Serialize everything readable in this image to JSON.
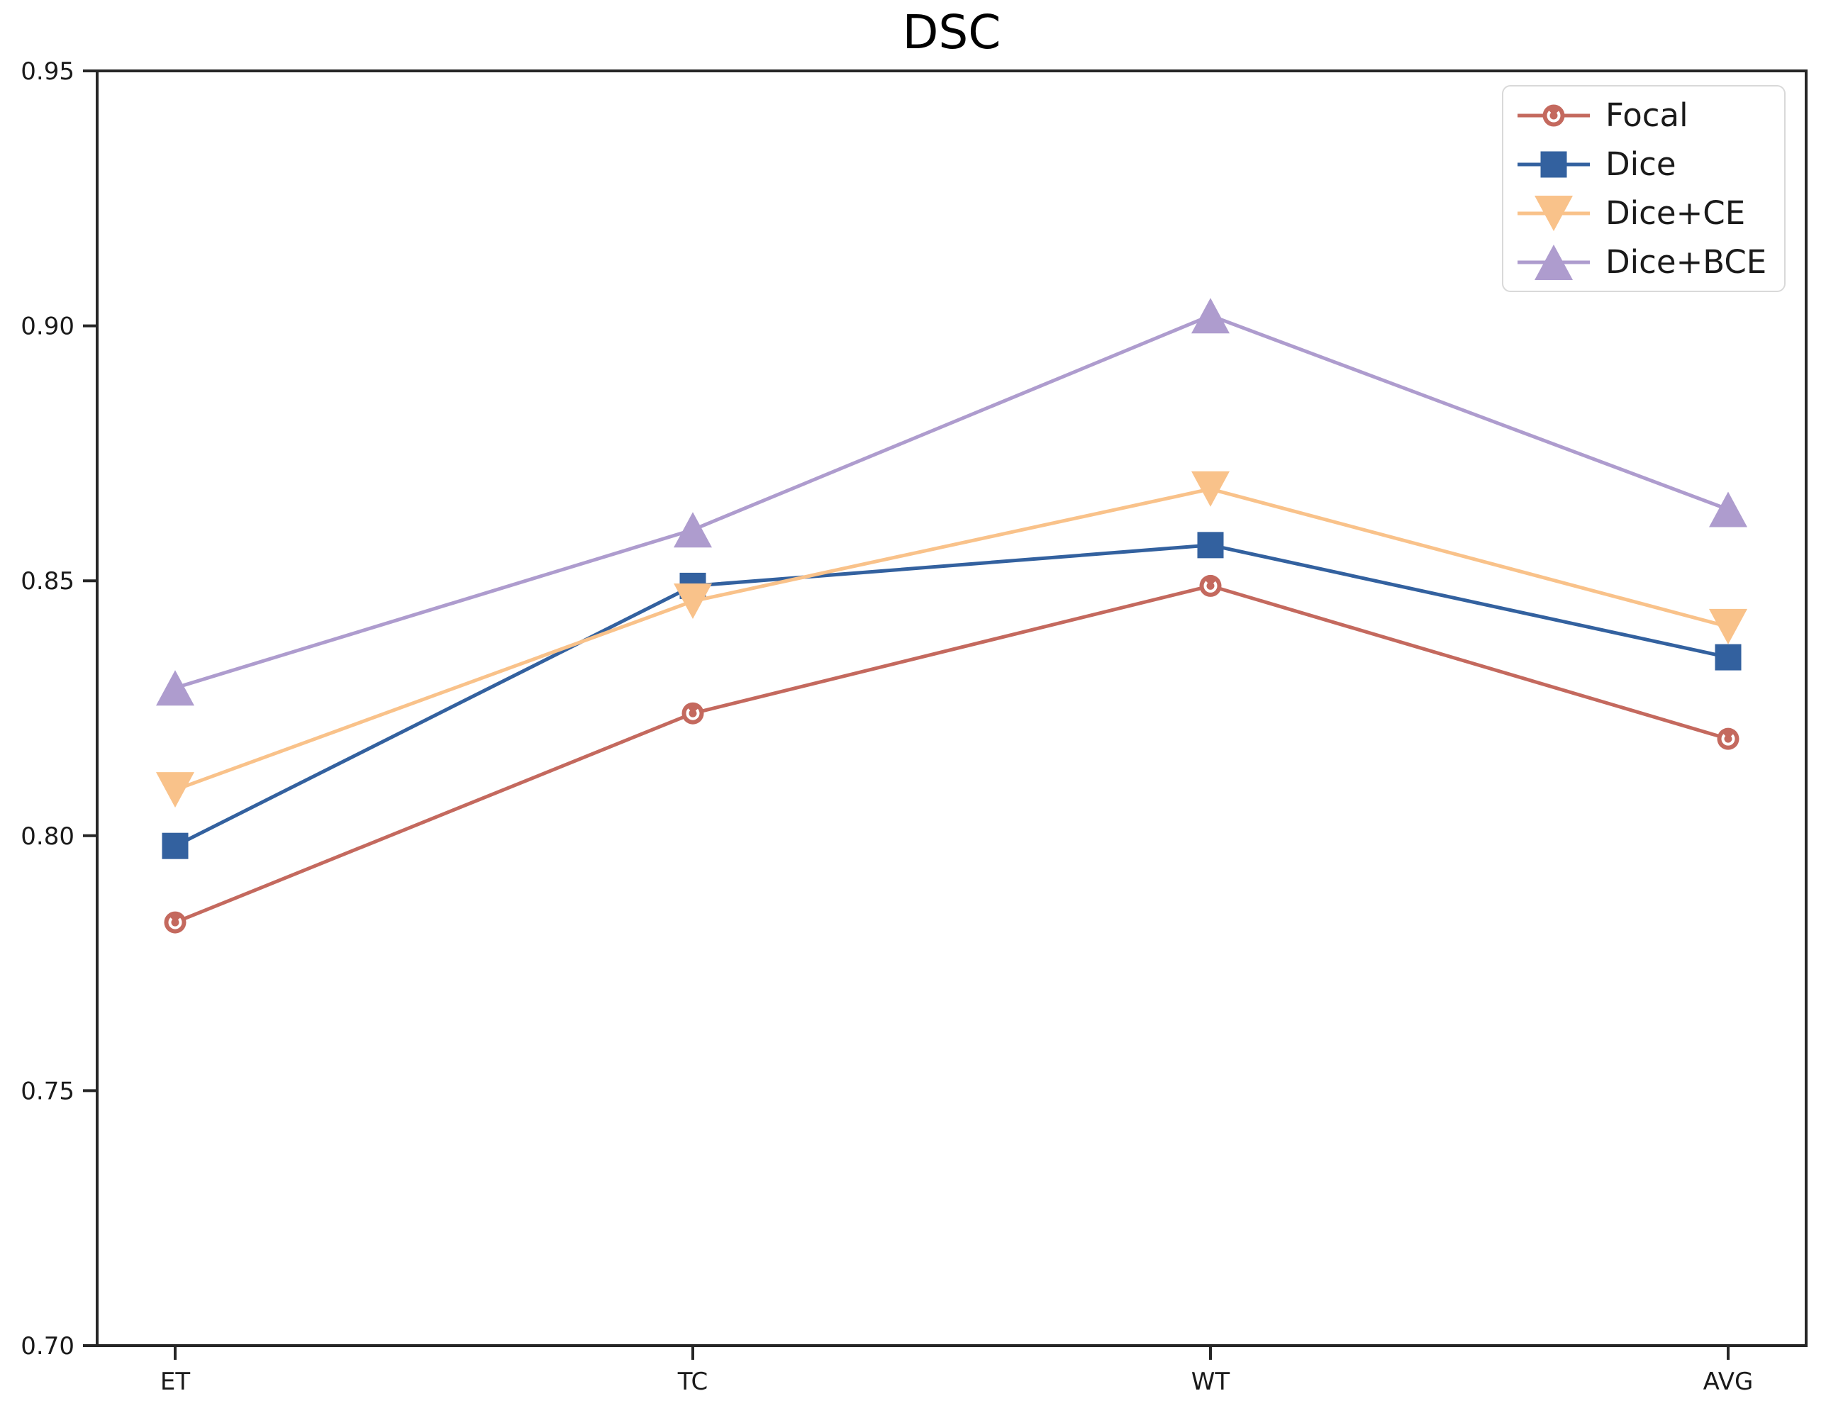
{
  "chart_data": {
    "type": "line",
    "title": "DSC",
    "categories": [
      "ET",
      "TC",
      "WT",
      "AVG"
    ],
    "xlabel": "",
    "ylabel": "",
    "ylim": [
      0.7,
      0.95
    ],
    "yticks": [
      0.7,
      0.75,
      0.8,
      0.85,
      0.9,
      0.95
    ],
    "grid": false,
    "legend_position": "upper right",
    "axis_color": "#262626",
    "series": [
      {
        "name": "Focal",
        "marker": "circle",
        "color": "#c4695e",
        "values": [
          0.783,
          0.824,
          0.849,
          0.819
        ]
      },
      {
        "name": "Dice",
        "marker": "square",
        "color": "#33619f",
        "values": [
          0.798,
          0.849,
          0.857,
          0.835
        ]
      },
      {
        "name": "Dice+CE",
        "marker": "triangle-down",
        "color": "#f9c28a",
        "values": [
          0.809,
          0.846,
          0.868,
          0.841
        ]
      },
      {
        "name": "Dice+BCE",
        "marker": "triangle-up",
        "color": "#ae9cce",
        "values": [
          0.829,
          0.86,
          0.902,
          0.864
        ]
      }
    ]
  }
}
